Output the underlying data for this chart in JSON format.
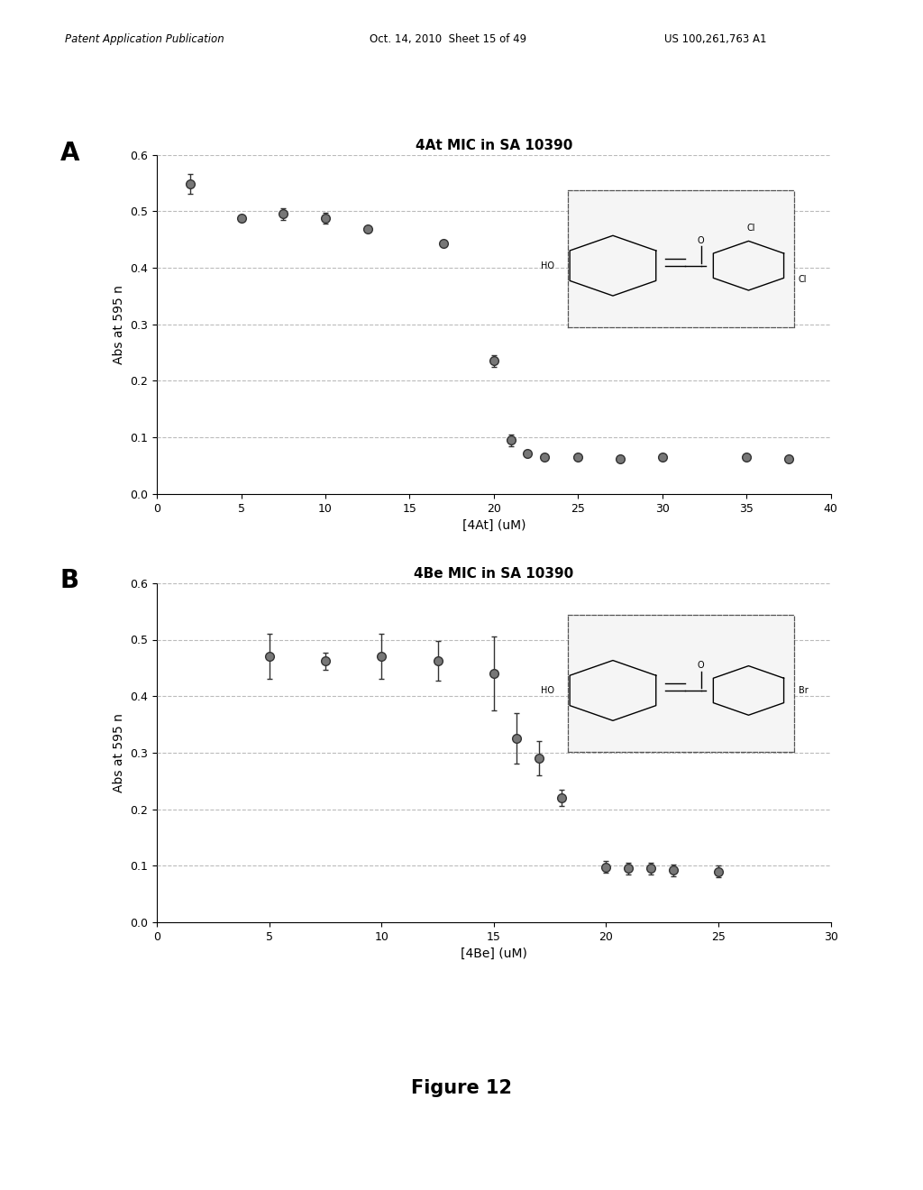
{
  "panel_A": {
    "title": "4At MIC in SA 10390",
    "xlabel": "[4At] (uM)",
    "ylabel": "Abs at 595 n",
    "xlim": [
      0,
      40
    ],
    "ylim": [
      0,
      0.6
    ],
    "yticks": [
      0,
      0.1,
      0.2,
      0.3,
      0.4,
      0.5,
      0.6
    ],
    "xticks": [
      0,
      5,
      10,
      15,
      20,
      25,
      30,
      35,
      40
    ],
    "x": [
      2.0,
      5.0,
      7.5,
      10.0,
      12.5,
      17.0,
      20.0,
      21.0,
      22.0,
      23.0,
      25.0,
      27.5,
      30.0,
      35.0,
      37.5
    ],
    "y": [
      0.548,
      0.488,
      0.495,
      0.488,
      0.468,
      0.443,
      0.235,
      0.095,
      0.072,
      0.065,
      0.065,
      0.062,
      0.065,
      0.065,
      0.062
    ],
    "yerr": [
      0.018,
      0.005,
      0.01,
      0.01,
      0.005,
      0.005,
      0.01,
      0.01,
      0.005,
      0.005,
      0.005,
      0.005,
      0.005,
      0.005,
      0.005
    ]
  },
  "panel_B": {
    "title": "4Be MIC in SA 10390",
    "xlabel": "[4Be] (uM)",
    "ylabel": "Abs at 595 n",
    "xlim": [
      0,
      30
    ],
    "ylim": [
      0,
      0.6
    ],
    "yticks": [
      0,
      0.1,
      0.2,
      0.3,
      0.4,
      0.5,
      0.6
    ],
    "xticks": [
      0,
      5,
      10,
      15,
      20,
      25,
      30
    ],
    "x": [
      5.0,
      7.5,
      10.0,
      12.5,
      15.0,
      16.0,
      17.0,
      18.0,
      20.0,
      21.0,
      22.0,
      23.0,
      25.0
    ],
    "y": [
      0.47,
      0.462,
      0.47,
      0.462,
      0.44,
      0.325,
      0.29,
      0.22,
      0.098,
      0.095,
      0.095,
      0.092,
      0.09
    ],
    "yerr": [
      0.04,
      0.015,
      0.04,
      0.035,
      0.065,
      0.045,
      0.03,
      0.015,
      0.01,
      0.01,
      0.01,
      0.01,
      0.01
    ]
  },
  "header_left": "Patent Application Publication",
  "header_mid": "Oct. 14, 2010  Sheet 15 of 49",
  "header_right": "US 100,261,763 A1",
  "figure_label": "Figure 12",
  "panel_A_label": "A",
  "panel_B_label": "B",
  "bg_color": "#ffffff",
  "grid_color": "#bbbbbb",
  "marker_color": "#777777",
  "marker_edge": "#333333",
  "title_fontsize": 11,
  "label_fontsize": 10,
  "tick_fontsize": 9,
  "panel_label_fontsize": 20,
  "figure_label_fontsize": 15
}
